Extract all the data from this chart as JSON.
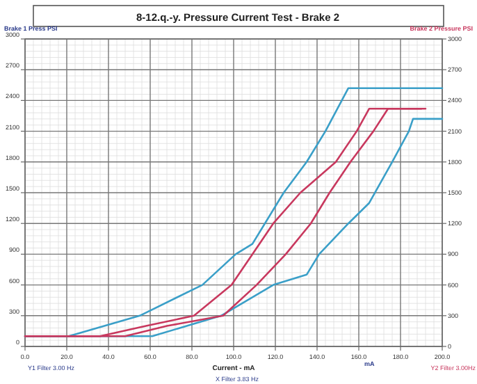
{
  "chart_data": {
    "type": "line",
    "title": "8-12.q.-y. Pressure Current Test - Brake 2",
    "xlabel": "Current - mA",
    "ylabel": "Brake 1 Press   PSI",
    "y2label": "Brake 2 Pressure   PSI",
    "annotations": [
      "Y1 Filter   3.00 Hz",
      "X Filter   3.83 Hz",
      "Y2 Filter   3.00Hz",
      "mA"
    ],
    "xlim": [
      0,
      200
    ],
    "xticks": [
      {
        "value": 0,
        "label": "0.0"
      },
      {
        "value": 20,
        "label": "20.0"
      },
      {
        "value": 40,
        "label": "40.0"
      },
      {
        "value": 60,
        "label": "60.0"
      },
      {
        "value": 80,
        "label": "80.0"
      },
      {
        "value": 100,
        "label": "100.0"
      },
      {
        "value": 120,
        "label": "120.0"
      },
      {
        "value": 140,
        "label": "140.0"
      },
      {
        "value": 160,
        "label": "160.0"
      },
      {
        "value": 180,
        "label": "180.0"
      },
      {
        "value": 200,
        "label": "200.0"
      }
    ],
    "ylim": [
      0,
      3000
    ],
    "yticks": [
      0,
      300,
      600,
      900,
      1200,
      1500,
      1800,
      2100,
      2400,
      2700,
      3000
    ],
    "y2lim": [
      0,
      3000
    ],
    "y2ticks": [
      0,
      300,
      600,
      900,
      1200,
      1500,
      1800,
      2100,
      2400,
      2700,
      3000
    ],
    "grid": true,
    "marker": "none",
    "line_style": "solid",
    "series": [
      {
        "color": "#3a9fc8",
        "x": [
          0,
          21,
          55,
          85,
          101,
          109,
          124,
          135,
          144,
          155,
          200
        ],
        "values": [
          100,
          100,
          300,
          600,
          900,
          1000,
          1500,
          1800,
          2100,
          2520,
          2520
        ]
      },
      {
        "color": "#3a9fc8",
        "x": [
          0,
          61,
          94,
          119,
          135,
          141,
          155,
          165,
          176,
          184,
          186,
          200
        ],
        "values": [
          100,
          100,
          300,
          600,
          700,
          900,
          1200,
          1400,
          1800,
          2100,
          2220,
          2220
        ]
      },
      {
        "color": "#c8385e",
        "x": [
          0,
          36,
          58,
          81,
          99,
          109,
          119,
          132,
          149,
          159,
          165,
          190
        ],
        "values": [
          100,
          100,
          200,
          300,
          600,
          900,
          1200,
          1500,
          1800,
          2100,
          2320,
          2320
        ]
      },
      {
        "color": "#c8385e",
        "x": [
          0,
          48,
          68,
          95,
          111,
          125,
          137,
          146,
          156,
          167,
          174,
          192
        ],
        "values": [
          100,
          100,
          200,
          300,
          600,
          900,
          1200,
          1500,
          1800,
          2100,
          2320,
          2320
        ]
      }
    ]
  }
}
